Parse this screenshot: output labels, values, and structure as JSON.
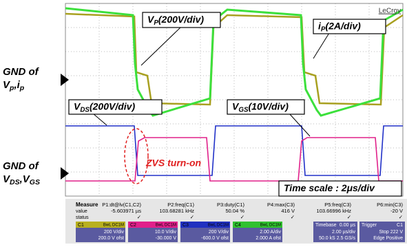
{
  "brand": "LeCroy",
  "left_labels": [
    {
      "line1": "GND of",
      "line2": [
        {
          "t": "V"
        },
        {
          "t": "p",
          "sub": true
        },
        {
          "t": ",i"
        },
        {
          "t": "p",
          "sub": true
        }
      ]
    },
    {
      "line1": "GND of",
      "line2": [
        {
          "t": "V"
        },
        {
          "t": "DS",
          "sub": true
        },
        {
          "t": ",V"
        },
        {
          "t": "GS",
          "sub": true
        }
      ]
    }
  ],
  "annotations": [
    {
      "parts": [
        {
          "t": "V"
        },
        {
          "t": "P",
          "sub": true
        },
        {
          "t": "(200V/div)"
        }
      ]
    },
    {
      "parts": [
        {
          "t": "i"
        },
        {
          "t": "P",
          "sub": true
        },
        {
          "t": "(2A/div)"
        }
      ]
    },
    {
      "parts": [
        {
          "t": "V"
        },
        {
          "t": "DS",
          "sub": true
        },
        {
          "t": "(200V/div)"
        }
      ]
    },
    {
      "parts": [
        {
          "t": "V"
        },
        {
          "t": "GS",
          "sub": true
        },
        {
          "t": "(10V/div)"
        }
      ]
    },
    {
      "parts": [
        {
          "t": "Time scale : 2μs/div"
        }
      ]
    }
  ],
  "zvs_label": "ZVS turn-on",
  "measure": {
    "row_labels": [
      "Measure",
      "value",
      "status"
    ],
    "columns": [
      {
        "name": "P1:dt@lv(C1,C2)",
        "value": "-5.603971 µs",
        "status": "✓"
      },
      {
        "name": "P2:freq(C1)",
        "value": "103.68281 kHz",
        "status": "✓"
      },
      {
        "name": "P3:duty(C1)",
        "value": "50.04 %",
        "status": "✓"
      },
      {
        "name": "P4:max(C3)",
        "value": "416 V",
        "status": "✓"
      },
      {
        "name": "P5:freq(C3)",
        "value": "103.66996 kHz",
        "status": "✓"
      },
      {
        "name": "P6:min(C3)",
        "value": "-20 V",
        "status": "✓"
      }
    ]
  },
  "channels": [
    {
      "name": "C1",
      "tag": "BwL DC1M",
      "color": "#b8b020",
      "lines": [
        "200 V/div",
        "200.0 V ofst"
      ]
    },
    {
      "name": "C2",
      "tag": "BwL DC1M",
      "color": "#e0208a",
      "lines": [
        "10.0 V/div",
        "-30.000 V"
      ]
    },
    {
      "name": "C3",
      "tag": "BwL DC1M",
      "color": "#2030c0",
      "lines": [
        "200 V/div",
        "-600.0 V ofst"
      ]
    },
    {
      "name": "C4",
      "tag": "BwL DC1M",
      "color": "#30c030",
      "lines": [
        "2.00 A/div",
        "2.000 A ofst"
      ]
    }
  ],
  "timebase": {
    "title": "Timebase",
    "top": "0.00 µs",
    "lines": [
      "2.00 µs/div",
      "50.0 kS    2.5 GS/s"
    ]
  },
  "trigger": {
    "title": "Trigger",
    "top": "C1",
    "lines": [
      "Stop        222 V",
      "Edge     Positive"
    ]
  }
}
